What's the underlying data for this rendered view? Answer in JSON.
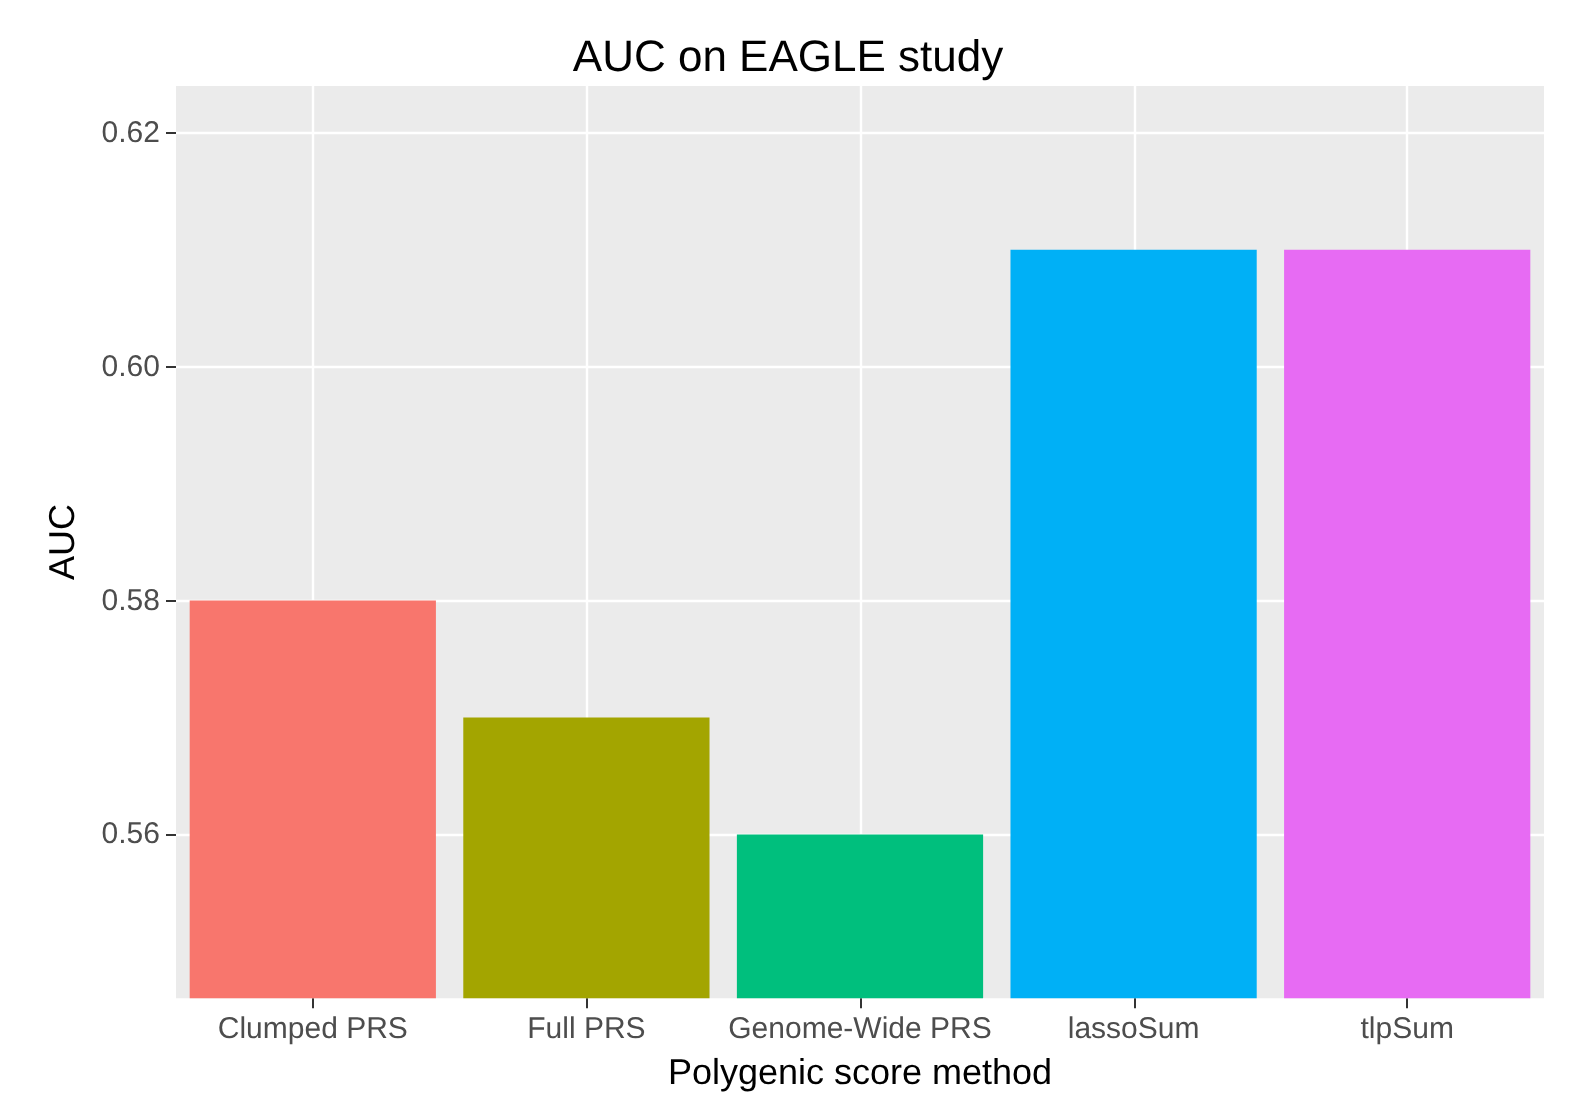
{
  "chart_data": {
    "type": "bar",
    "title": "AUC on EAGLE study",
    "xlabel": "Polygenic score method",
    "ylabel": "AUC",
    "categories": [
      "Clumped PRS",
      "Full PRS",
      "Genome-Wide PRS",
      "lassoSum",
      "tlpSum"
    ],
    "values": [
      0.58,
      0.57,
      0.56,
      0.61,
      0.61
    ],
    "colors": [
      "#f8766d",
      "#a3a500",
      "#00bf7d",
      "#00b0f6",
      "#e76bf3"
    ],
    "ylim": [
      0.546,
      0.624
    ],
    "yticks": [
      {
        "value": 0.56,
        "label": "0.56"
      },
      {
        "value": 0.58,
        "label": "0.58"
      },
      {
        "value": 0.6,
        "label": "0.60"
      },
      {
        "value": 0.62,
        "label": "0.62"
      }
    ],
    "grid": true
  }
}
